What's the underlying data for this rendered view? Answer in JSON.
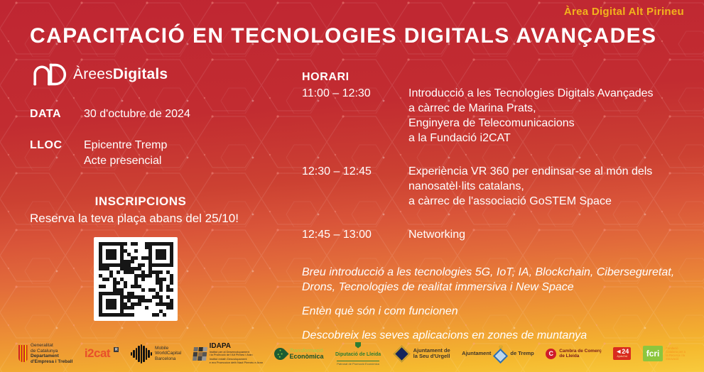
{
  "colors": {
    "bg_top": "#BF2632",
    "bg_mid": "#DC6038",
    "bg_bottom": "#F8CA3C",
    "accent_gold": "#F2B31C",
    "text": "#FFFFFF"
  },
  "header": {
    "area_label": "Àrea Digital Alt Pirineu",
    "title": "CAPACITACIÓ EN TECNOLOGIES DIGITALS AVANÇADES",
    "brand_regular": "Àrees",
    "brand_bold": "Digitals"
  },
  "details": {
    "data_label": "DATA",
    "data_value": "30 d'octubre de 2024",
    "lloc_label": "LLOC",
    "lloc_value": "Epicentre Tremp\nActe presencial"
  },
  "inscriptions": {
    "title": "INSCRIPCIONS",
    "subtitle": "Reserva la teva plaça abans del 25/10!"
  },
  "schedule": {
    "title": "HORARI",
    "items": [
      {
        "time": "11:00 – 12:30",
        "text": "Introducció a les Tecnologies Digitals Avançades\na càrrec de Marina Prats,\nEnginyera de Telecomunicacions\na la Fundació i2CAT"
      },
      {
        "time": "12:30 – 12:45",
        "text": "Experiència VR 360 per endinsar-se al món dels\nnanosatèl·lits catalans,\na càrrec de l'associació GoSTEM Space"
      },
      {
        "time": "12:45 – 13:00",
        "text": "Networking"
      }
    ]
  },
  "notes": [
    "Breu introducció a les tecnologies 5G, IoT, IA, Blockchain, Ciberseguretat, Drons, Tecnologies de realitat immersiva i New Space",
    "Entèn què són i com funcionen",
    "Descobreix les seves aplicacions en zones de muntanya"
  ],
  "icons": {
    "brand_monogram": "arees-digitals-monogram-icon",
    "qr": "qr-code",
    "senyera": "senyera-stripes-icon",
    "soundwave": "soundwave-bars-icon",
    "mosaic": "mosaic-grid-icon",
    "leaf": "leaf-shield-icon",
    "crest": "crest-icon",
    "diamond": "diamond-crest-icon",
    "crown": "crown-icon",
    "shield": "shield-icon",
    "c_badge": "letter-c-badge-icon"
  },
  "footer": {
    "generalitat": {
      "top": "Generalitat\nde Catalunya",
      "bottom": "Departament\nd'Empresa i Treball"
    },
    "i2cat": {
      "text": "i2cat",
      "r": "R"
    },
    "mwcb": {
      "text": "Mobile\nWorldCapital\nBarcelona"
    },
    "idapa": {
      "title": "IDAPA",
      "sub1": "Institut per al Desenvolupament\ni la Promoció de l'Alt Pirineu i Aran",
      "sub2": "Institut entath Desvolopament\ne era Promocion deth Naut Pirenèu e Aran"
    },
    "transformacio": {
      "top": "Transformació",
      "bottom": "Econòmica"
    },
    "diputacio": {
      "title": "Diputació de Lleida",
      "sub": "Patronat de Promoció Econòmica"
    },
    "seu": {
      "text": "Ajuntament de\nla Seu d'Urgell"
    },
    "tremp": {
      "left": "Ajuntament",
      "right": "de Tremp"
    },
    "cambra": {
      "text": "Cambra de Comerç\nde Lleida"
    },
    "ajuts24": {
      "num": "◄24",
      "caption": "AjutsOrd"
    },
    "fcri": {
      "text": "fcri",
      "side": "Fundació\nCatalana per a\nla Recerca i la\nInnovació"
    }
  }
}
